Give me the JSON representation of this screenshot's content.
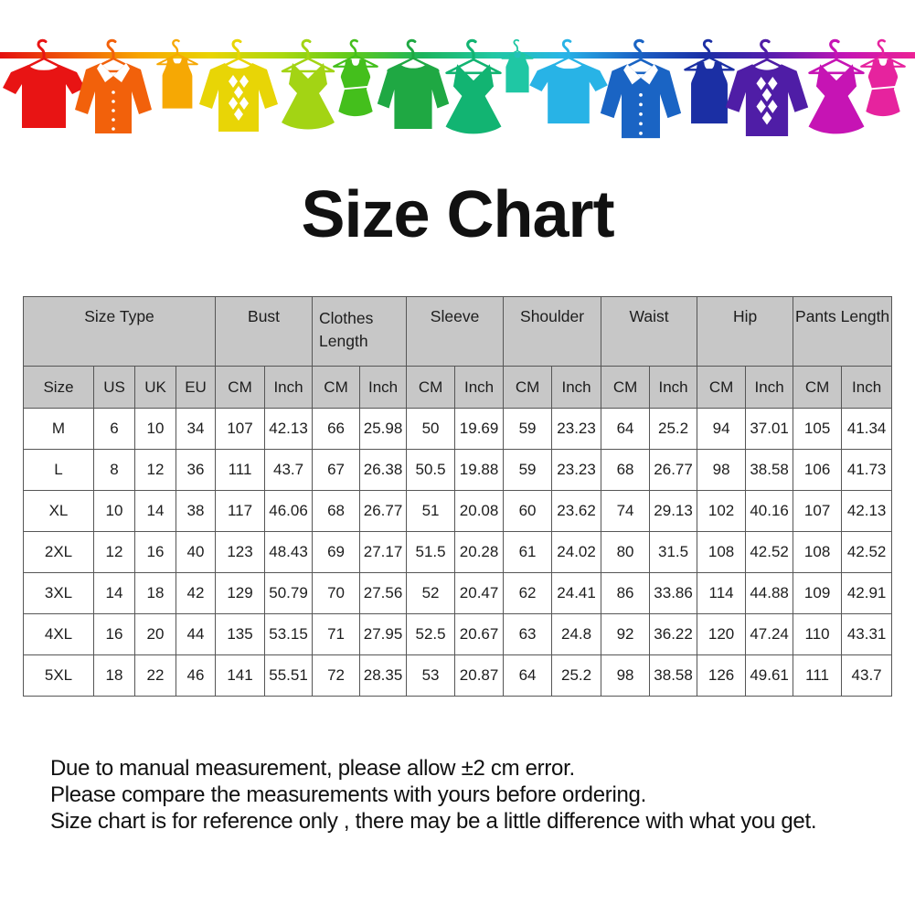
{
  "title": "Size Chart",
  "banner": {
    "line_colors": [
      "#e41010",
      "#ef5a08",
      "#f7a600",
      "#e9d403",
      "#abd80e",
      "#5ec91c",
      "#1cb45c",
      "#21c7a2",
      "#28b5e8",
      "#1b64c6",
      "#1b2fa6",
      "#5a1cae",
      "#c315b5",
      "#ec2395"
    ],
    "garments": [
      {
        "icon": "tshirt-icon",
        "color": "#e81414"
      },
      {
        "icon": "shirt-icon",
        "color": "#f2610b"
      },
      {
        "icon": "tank-icon",
        "color": "#f6a804"
      },
      {
        "icon": "argyle-icon",
        "color": "#e8d506"
      },
      {
        "icon": "dress-icon",
        "color": "#a3d414"
      },
      {
        "icon": "tankdress-icon",
        "color": "#44bf1c"
      },
      {
        "icon": "longsleeve-icon",
        "color": "#1fa843"
      },
      {
        "icon": "dress-icon",
        "color": "#12b472"
      },
      {
        "icon": "tank-icon",
        "color": "#1fc7a4"
      },
      {
        "icon": "tshirt-icon",
        "color": "#28b3e6"
      },
      {
        "icon": "shirt-icon",
        "color": "#1a64c4"
      },
      {
        "icon": "tank-icon",
        "color": "#1b2fa4"
      },
      {
        "icon": "argyle-icon",
        "color": "#4f1da6"
      },
      {
        "icon": "dress-icon",
        "color": "#c614b4"
      },
      {
        "icon": "tankdress-icon",
        "color": "#e6239e"
      }
    ]
  },
  "chart_data": {
    "type": "table",
    "title": "Size Chart",
    "column_groups": [
      {
        "label": "Size Type",
        "colspan": 4
      },
      {
        "label": "Bust",
        "colspan": 2
      },
      {
        "label": "Clothes Length",
        "colspan": 2
      },
      {
        "label": "Sleeve",
        "colspan": 2
      },
      {
        "label": "Shoulder",
        "colspan": 2
      },
      {
        "label": "Waist",
        "colspan": 2
      },
      {
        "label": "Hip",
        "colspan": 2
      },
      {
        "label": "Pants Length",
        "colspan": 2
      }
    ],
    "columns": [
      "Size",
      "US",
      "UK",
      "EU",
      "CM",
      "Inch",
      "CM",
      "Inch",
      "CM",
      "Inch",
      "CM",
      "Inch",
      "CM",
      "Inch",
      "CM",
      "Inch",
      "CM",
      "Inch"
    ],
    "rows": [
      [
        "M",
        "6",
        "10",
        "34",
        "107",
        "42.13",
        "66",
        "25.98",
        "50",
        "19.69",
        "59",
        "23.23",
        "64",
        "25.2",
        "94",
        "37.01",
        "105",
        "41.34"
      ],
      [
        "L",
        "8",
        "12",
        "36",
        "111",
        "43.7",
        "67",
        "26.38",
        "50.5",
        "19.88",
        "59",
        "23.23",
        "68",
        "26.77",
        "98",
        "38.58",
        "106",
        "41.73"
      ],
      [
        "XL",
        "10",
        "14",
        "38",
        "117",
        "46.06",
        "68",
        "26.77",
        "51",
        "20.08",
        "60",
        "23.62",
        "74",
        "29.13",
        "102",
        "40.16",
        "107",
        "42.13"
      ],
      [
        "2XL",
        "12",
        "16",
        "40",
        "123",
        "48.43",
        "69",
        "27.17",
        "51.5",
        "20.28",
        "61",
        "24.02",
        "80",
        "31.5",
        "108",
        "42.52",
        "108",
        "42.52"
      ],
      [
        "3XL",
        "14",
        "18",
        "42",
        "129",
        "50.79",
        "70",
        "27.56",
        "52",
        "20.47",
        "62",
        "24.41",
        "86",
        "33.86",
        "114",
        "44.88",
        "109",
        "42.91"
      ],
      [
        "4XL",
        "16",
        "20",
        "44",
        "135",
        "53.15",
        "71",
        "27.95",
        "52.5",
        "20.67",
        "63",
        "24.8",
        "92",
        "36.22",
        "120",
        "47.24",
        "110",
        "43.31"
      ],
      [
        "5XL",
        "18",
        "22",
        "46",
        "141",
        "55.51",
        "72",
        "28.35",
        "53",
        "20.87",
        "64",
        "25.2",
        "98",
        "38.58",
        "126",
        "49.61",
        "111",
        "43.7"
      ]
    ]
  },
  "notes": [
    "Due to manual measurement, please allow ±2 cm error.",
    "Please compare the measurements with yours before ordering.",
    "Size chart is for reference only , there may be a little difference with what you get."
  ]
}
